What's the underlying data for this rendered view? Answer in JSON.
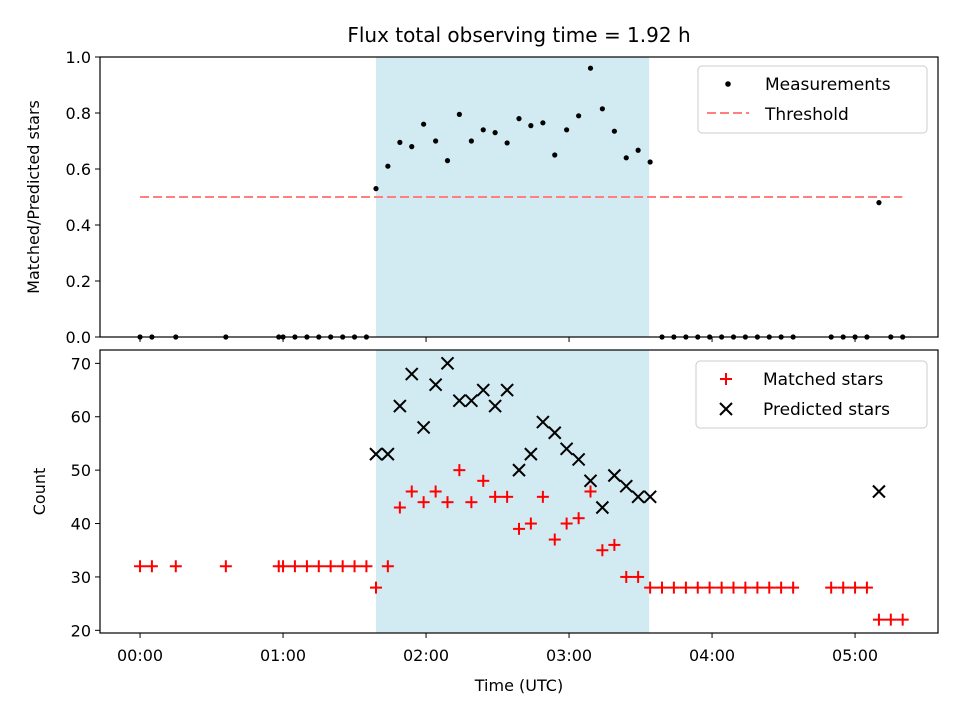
{
  "chart_data": [
    {
      "type": "scatter",
      "title": "Flux total observing time = 1.92 h",
      "xlabel": "",
      "ylabel": "Matched/Predicted stars",
      "ylim": [
        0,
        1.0
      ],
      "yticks": [
        "0.0",
        "0.2",
        "0.4",
        "0.6",
        "0.8",
        "1.0"
      ],
      "ytick_values": [
        0,
        0.2,
        0.4,
        0.6,
        0.8,
        1.0
      ],
      "xlim_hours": [
        -0.28,
        5.58
      ],
      "highlight_span_hours": [
        1.65,
        3.56
      ],
      "highlight_color": "#add8e6",
      "threshold": {
        "name": "Threshold",
        "y": 0.5,
        "x_hours": [
          0,
          5.33
        ],
        "color": "#ff7f7f"
      },
      "legend": [
        "Measurements",
        "Threshold"
      ],
      "legend_position": "upper right",
      "series": [
        {
          "name": "Measurements",
          "color": "#000000",
          "x_hours": [
            0.0,
            0.083,
            0.25,
            0.6,
            0.97,
            1.0,
            1.083,
            1.167,
            1.25,
            1.333,
            1.417,
            1.5,
            1.583,
            1.65,
            1.733,
            1.817,
            1.9,
            1.983,
            2.067,
            2.15,
            2.233,
            2.317,
            2.4,
            2.483,
            2.567,
            2.65,
            2.733,
            2.817,
            2.9,
            2.983,
            3.067,
            3.15,
            3.233,
            3.317,
            3.4,
            3.483,
            3.567,
            3.65,
            3.733,
            3.817,
            3.9,
            3.983,
            4.067,
            4.15,
            4.233,
            4.317,
            4.4,
            4.483,
            4.567,
            4.833,
            4.917,
            5.0,
            5.083,
            5.167,
            5.25,
            5.333
          ],
          "values": [
            0,
            0,
            0,
            0,
            0,
            0,
            0,
            0,
            0,
            0,
            0,
            0,
            0,
            0.53,
            0.61,
            0.695,
            0.68,
            0.76,
            0.7,
            0.63,
            0.795,
            0.7,
            0.74,
            0.73,
            0.693,
            0.78,
            0.755,
            0.765,
            0.65,
            0.74,
            0.79,
            0.96,
            0.815,
            0.735,
            0.64,
            0.667,
            0.625,
            0,
            0,
            0,
            0,
            0,
            0,
            0,
            0,
            0,
            0,
            0,
            0,
            0,
            0,
            0,
            0,
            0.48,
            0,
            0
          ]
        }
      ]
    },
    {
      "type": "scatter",
      "title": "",
      "xlabel": "Time (UTC)",
      "ylabel": "Count",
      "ylim": [
        19.5,
        72.5
      ],
      "yticks": [
        "20",
        "30",
        "40",
        "50",
        "60",
        "70"
      ],
      "ytick_values": [
        20,
        30,
        40,
        50,
        60,
        70
      ],
      "xticks": [
        "00:00",
        "01:00",
        "02:00",
        "03:00",
        "04:00",
        "05:00"
      ],
      "xtick_hours": [
        0,
        1,
        2,
        3,
        4,
        5
      ],
      "xlim_hours": [
        -0.28,
        5.58
      ],
      "highlight_span_hours": [
        1.65,
        3.56
      ],
      "highlight_color": "#add8e6",
      "legend": [
        "Matched stars",
        "Predicted stars"
      ],
      "legend_position": "upper right",
      "series": [
        {
          "name": "Matched stars",
          "marker": "plus",
          "color": "#ff0000",
          "x_hours": [
            0.0,
            0.083,
            0.25,
            0.6,
            0.97,
            1.0,
            1.083,
            1.167,
            1.25,
            1.333,
            1.417,
            1.5,
            1.583,
            1.65,
            1.733,
            1.817,
            1.9,
            1.983,
            2.067,
            2.15,
            2.233,
            2.317,
            2.4,
            2.483,
            2.567,
            2.65,
            2.733,
            2.817,
            2.9,
            2.983,
            3.067,
            3.15,
            3.233,
            3.317,
            3.4,
            3.483,
            3.567,
            3.65,
            3.733,
            3.817,
            3.9,
            3.983,
            4.067,
            4.15,
            4.233,
            4.317,
            4.4,
            4.483,
            4.567,
            4.833,
            4.917,
            5.0,
            5.083,
            5.167,
            5.25,
            5.333
          ],
          "values": [
            32,
            32,
            32,
            32,
            32,
            32,
            32,
            32,
            32,
            32,
            32,
            32,
            32,
            28,
            32,
            43,
            46,
            44,
            46,
            44,
            50,
            44,
            48,
            45,
            45,
            39,
            40,
            45,
            37,
            40,
            41,
            46,
            35,
            36,
            30,
            30,
            28,
            28,
            28,
            28,
            28,
            28,
            28,
            28,
            28,
            28,
            28,
            28,
            28,
            28,
            28,
            28,
            28,
            22,
            22,
            22
          ]
        },
        {
          "name": "Predicted stars",
          "marker": "x",
          "color": "#000000",
          "x_hours": [
            1.65,
            1.733,
            1.817,
            1.9,
            1.983,
            2.067,
            2.15,
            2.233,
            2.317,
            2.4,
            2.483,
            2.567,
            2.65,
            2.733,
            2.817,
            2.9,
            2.983,
            3.067,
            3.15,
            3.233,
            3.317,
            3.4,
            3.483,
            3.567,
            5.167
          ],
          "values": [
            53,
            53,
            62,
            68,
            58,
            66,
            70,
            63,
            63,
            65,
            62,
            65,
            50,
            53,
            59,
            57,
            54,
            52,
            48,
            43,
            49,
            47,
            45,
            45,
            46
          ]
        }
      ]
    }
  ]
}
